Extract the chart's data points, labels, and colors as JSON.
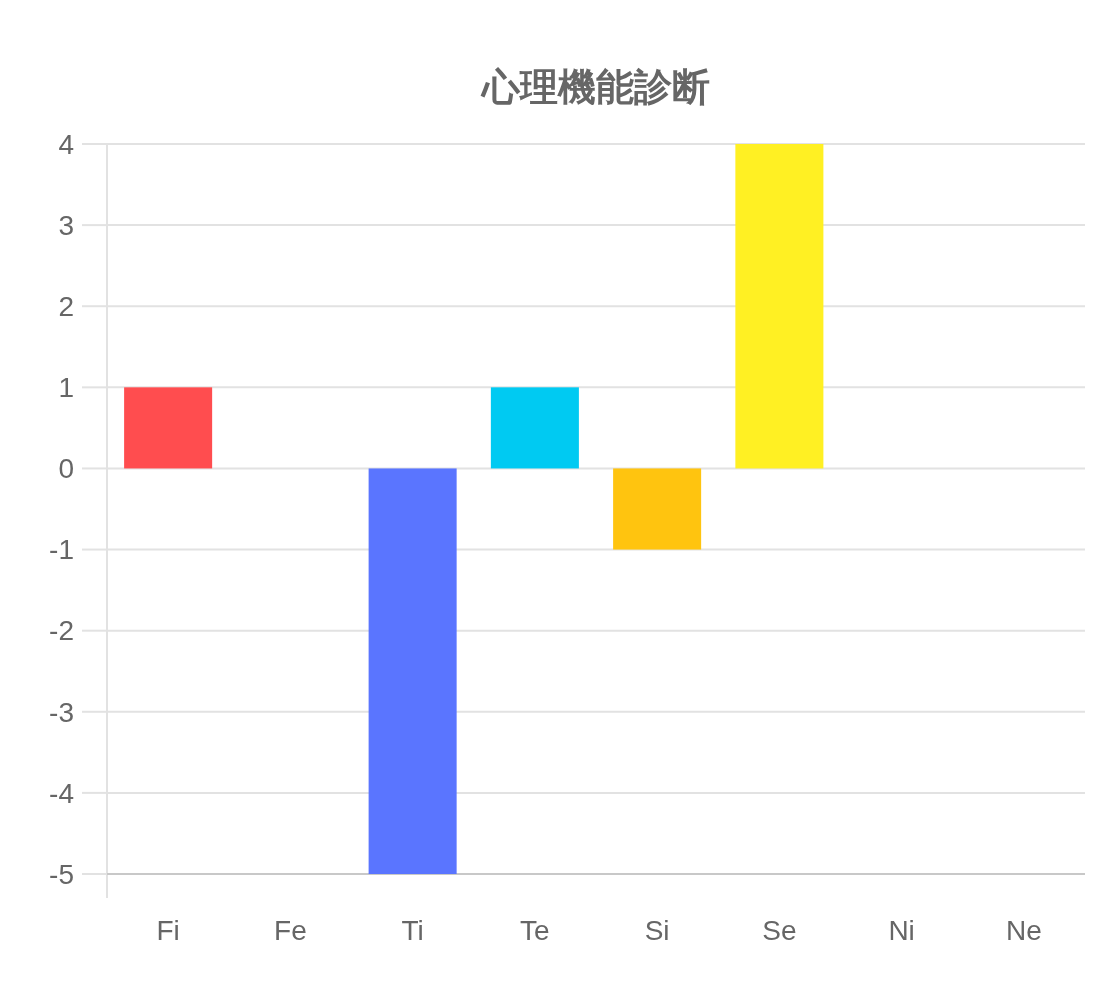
{
  "chart_data": {
    "type": "bar",
    "title": "心理機能診断",
    "categories": [
      "Fi",
      "Fe",
      "Ti",
      "Te",
      "Si",
      "Se",
      "Ni",
      "Ne"
    ],
    "values": [
      1,
      0,
      -5,
      1,
      -1,
      4,
      0,
      0
    ],
    "colors": [
      "#ff4d4f",
      "#ff9f40",
      "#5a75ff",
      "#00caf2",
      "#ffc40f",
      "#fff023",
      "#9966ff",
      "#4bc0c0"
    ],
    "ylim": [
      -5,
      4
    ],
    "yticks": [
      -5,
      -4,
      -3,
      -2,
      -1,
      0,
      1,
      2,
      3,
      4
    ],
    "grid": "y"
  }
}
